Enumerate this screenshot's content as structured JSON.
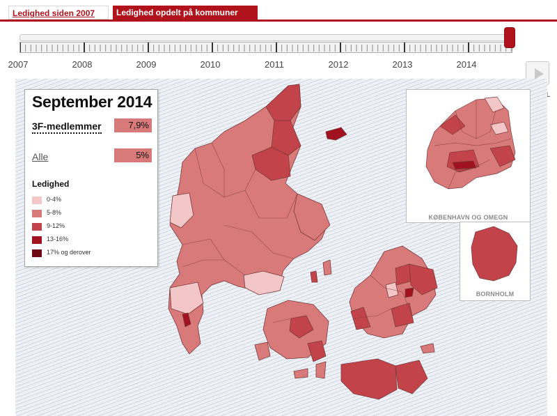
{
  "tabs": [
    {
      "label": "Ledighed siden 2007"
    },
    {
      "label": "Ledighed opdelt på kommuner"
    }
  ],
  "timeline": {
    "years": [
      "2007",
      "2008",
      "2009",
      "2010",
      "2011",
      "2012",
      "2013",
      "2014"
    ],
    "play_label": "AFSPIL"
  },
  "panel": {
    "title": "September 2014",
    "member_label": "3F-medlemmer",
    "member_value": "7,9%",
    "all_label": "Alle",
    "all_value": "5%",
    "legend_title": "Ledighed",
    "legend": [
      {
        "label": "0-4%",
        "color": "#f3c6c8"
      },
      {
        "label": "5-8%",
        "color": "#d97a7a"
      },
      {
        "label": "9-12%",
        "color": "#c2434a"
      },
      {
        "label": "13-16%",
        "color": "#a0121f"
      },
      {
        "label": "17% og derover",
        "color": "#6b0a12"
      }
    ]
  },
  "insets": {
    "copenhagen_label": "KØBENHAVN OG OMEGN",
    "bornholm_label": "BORNHOLM"
  },
  "colors": {
    "brand": "#b0131b",
    "low": "#f3c6c8",
    "mid": "#d97a7a",
    "high": "#c2434a",
    "higher": "#a0121f",
    "highest": "#6b0a12"
  }
}
